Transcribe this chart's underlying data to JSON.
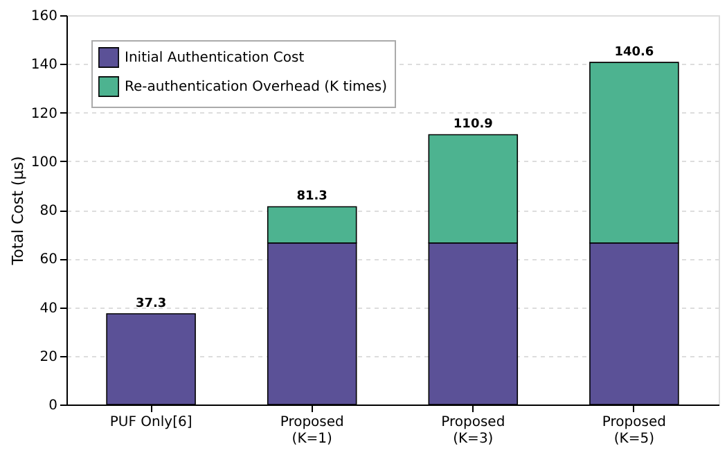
{
  "chart_data": {
    "type": "bar",
    "stacked": true,
    "ylabel": "Total Cost (μs)",
    "categories": [
      "PUF Only[6]",
      "Proposed\n(K=1)",
      "Proposed\n(K=3)",
      "Proposed\n(K=5)"
    ],
    "series": [
      {
        "name": "Initial Authentication Cost",
        "color": "#5b5197",
        "values": [
          37.3,
          66.4,
          66.4,
          66.4
        ]
      },
      {
        "name": "Re-authentication Overhead (K times)",
        "color": "#4db390",
        "values": [
          null,
          14.9,
          44.5,
          74.2
        ]
      }
    ],
    "totals": [
      "37.3",
      "81.3",
      "110.9",
      "140.6"
    ],
    "ylim": [
      0,
      160
    ],
    "yticks": [
      0,
      20,
      40,
      60,
      80,
      100,
      120,
      140,
      160
    ],
    "grid": "y",
    "legend": "top left"
  }
}
